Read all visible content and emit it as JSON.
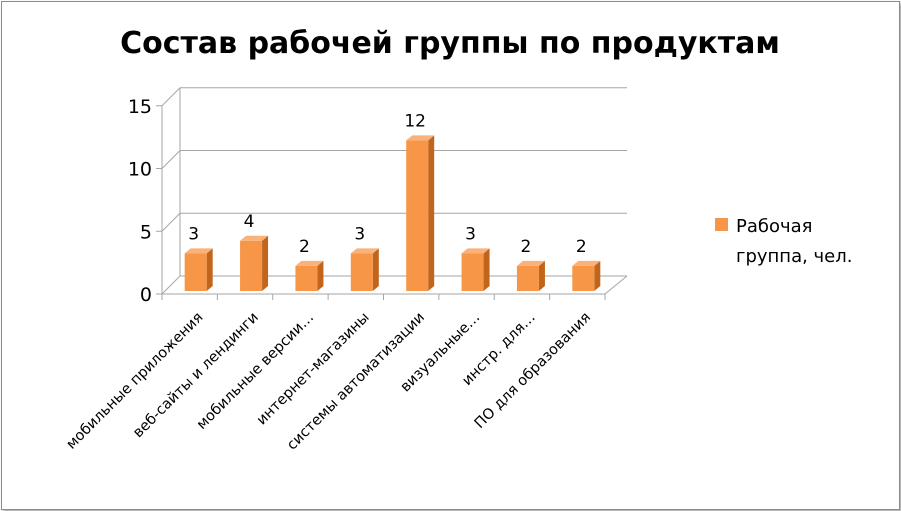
{
  "chart_data": {
    "type": "bar",
    "title": "Состав рабочей группы по продуктам",
    "categories": [
      "мобильные приложения",
      "веб-сайты и лендинги",
      "мобильные версии…",
      "интернет-магазины",
      "системы автоматизации",
      "визуальные…",
      "инстр. для…",
      "ПО для образования"
    ],
    "series": [
      {
        "name": "Рабочая группа, чел.",
        "values": [
          3,
          4,
          2,
          3,
          12,
          3,
          2,
          2
        ]
      }
    ],
    "yticks": [
      "0",
      "5",
      "10",
      "15"
    ],
    "ylim": [
      0,
      15
    ],
    "legend_lines": [
      "Рабочая",
      "группа, чел."
    ],
    "legend_position": "right",
    "grid": true,
    "style": "3d-column",
    "colors": {
      "bar_front": "#f79646",
      "bar_side": "#c0651b",
      "bar_top": "#fab27a",
      "grid": "#a6a6a6"
    }
  }
}
